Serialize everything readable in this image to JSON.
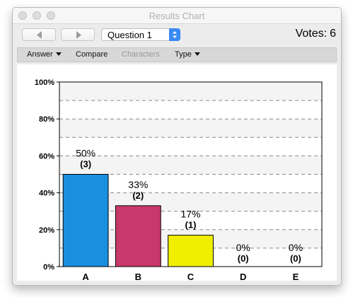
{
  "window": {
    "title": "Results Chart"
  },
  "toolbar": {
    "question_select": "Question 1",
    "votes_label": "Votes:",
    "votes_count": "6"
  },
  "menu": {
    "answer": "Answer",
    "compare": "Compare",
    "characters": "Characters",
    "type": "Type"
  },
  "colors": {
    "A": "#1a8fdf",
    "B": "#c8386a",
    "C": "#f0ef00"
  },
  "chart_data": {
    "type": "bar",
    "categories": [
      "A",
      "B",
      "C",
      "D",
      "E"
    ],
    "values": [
      50,
      33,
      17,
      0,
      0
    ],
    "value_labels": [
      "50%",
      "33%",
      "17%",
      "0%",
      "0%"
    ],
    "count_labels": [
      "(3)",
      "(2)",
      "(1)",
      "(0)",
      "(0)"
    ],
    "colors": [
      "#1a8fdf",
      "#c8386a",
      "#f0ef00",
      "#cccccc",
      "#cccccc"
    ],
    "ylim": [
      0,
      100
    ],
    "yticks": [
      "0%",
      "20%",
      "40%",
      "60%",
      "80%",
      "100%"
    ],
    "grid": true,
    "title": "",
    "xlabel": "",
    "ylabel": ""
  }
}
